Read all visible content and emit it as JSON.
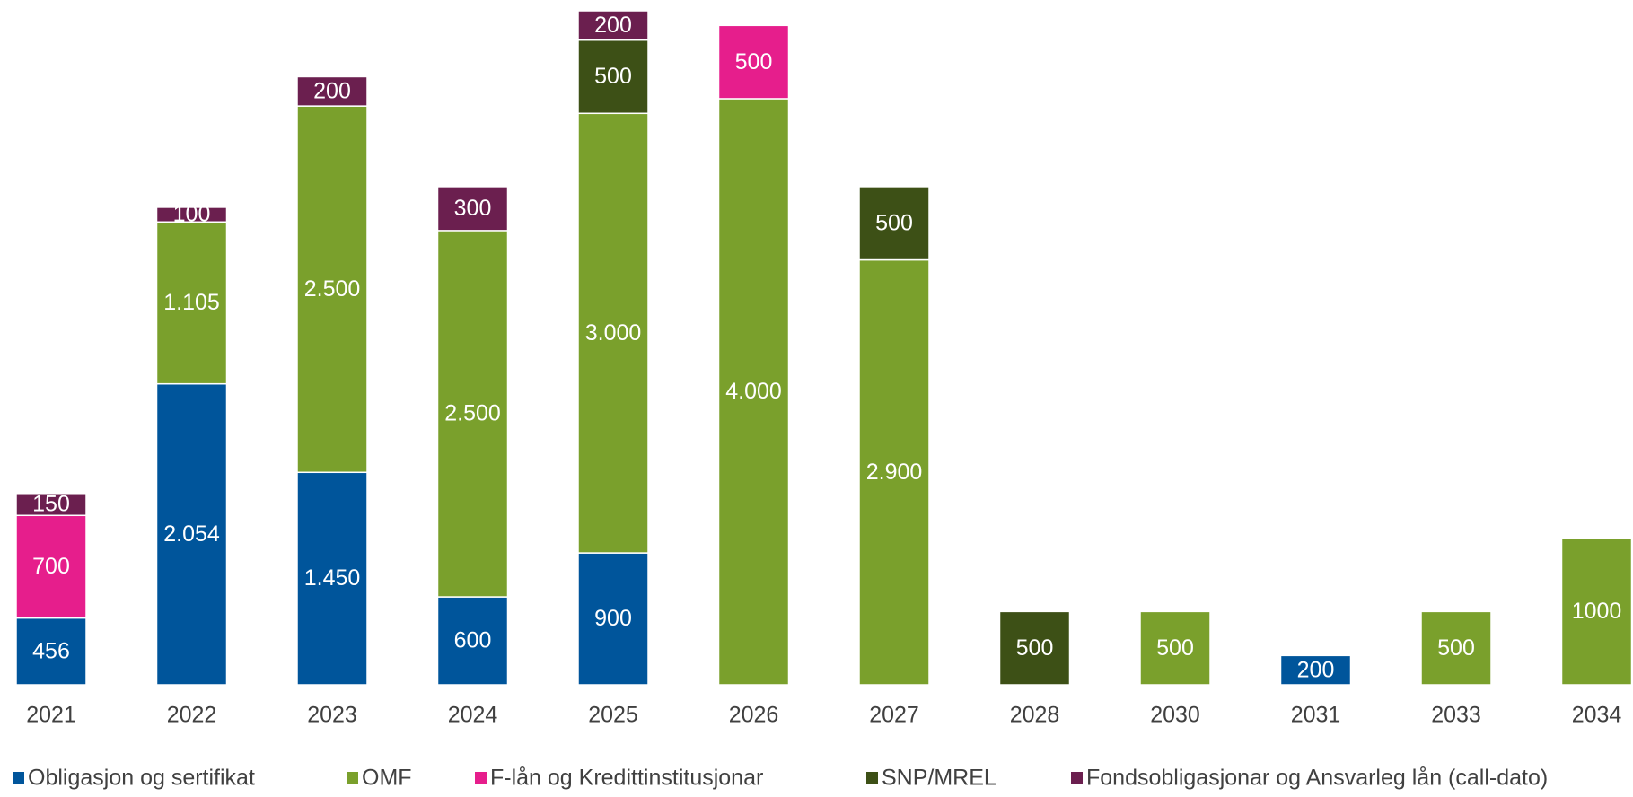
{
  "chart_data": {
    "type": "bar",
    "stacked": true,
    "categories": [
      "2021",
      "2022",
      "2023",
      "2024",
      "2025",
      "2026",
      "2027",
      "2028",
      "2030",
      "2031",
      "2033",
      "2034"
    ],
    "series": [
      {
        "name": "Obligasjon og sertifikat",
        "color": "#00559b",
        "values": [
          456,
          2054,
          1450,
          600,
          900,
          null,
          null,
          null,
          null,
          200,
          null,
          null
        ],
        "value_labels": [
          "456",
          "2.054",
          "1.450",
          "600",
          "900",
          null,
          null,
          null,
          null,
          "200",
          null,
          null
        ]
      },
      {
        "name": "OMF",
        "color": "#7aa02c",
        "values": [
          null,
          1105,
          2500,
          2500,
          3000,
          4000,
          2900,
          null,
          500,
          null,
          500,
          1000
        ],
        "value_labels": [
          null,
          "1.105",
          "2.500",
          "2.500",
          "3.000",
          "4.000",
          "2.900",
          null,
          "500",
          null,
          "500",
          "1000"
        ]
      },
      {
        "name": "F-lån og Kredittinstitusjonar",
        "color": "#e61e8c",
        "values": [
          700,
          null,
          null,
          null,
          null,
          500,
          null,
          null,
          null,
          null,
          null,
          null
        ],
        "value_labels": [
          "700",
          null,
          null,
          null,
          null,
          "500",
          null,
          null,
          null,
          null,
          null,
          null
        ]
      },
      {
        "name": "SNP/MREL",
        "color": "#3d5016",
        "values": [
          null,
          null,
          null,
          null,
          500,
          null,
          500,
          500,
          null,
          null,
          null,
          null
        ],
        "value_labels": [
          null,
          null,
          null,
          null,
          "500",
          null,
          "500",
          "500",
          null,
          null,
          null,
          null
        ]
      },
      {
        "name": "Fondsobligasjonar og Ansvarleg lån (call-dato)",
        "color": "#6b1f4f",
        "values": [
          150,
          100,
          200,
          300,
          200,
          null,
          null,
          null,
          null,
          null,
          null,
          null
        ],
        "value_labels": [
          "150",
          "100",
          "200",
          "300",
          "200",
          null,
          null,
          null,
          null,
          null,
          null,
          null
        ]
      }
    ],
    "legend": "bottom"
  }
}
